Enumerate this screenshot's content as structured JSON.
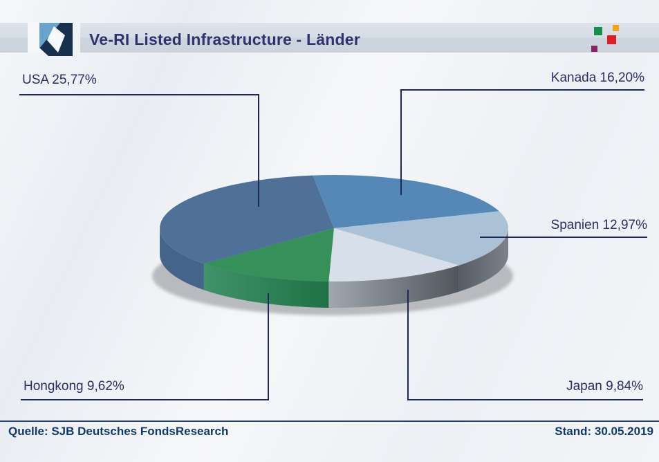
{
  "header": {
    "title": "Ve-RI Listed Infrastructure - Länder",
    "logo": "sjb-logo",
    "squares": [
      {
        "name": "green-square",
        "color": "#168f4c"
      },
      {
        "name": "orange-square",
        "color": "#f2a50c"
      },
      {
        "name": "red-square",
        "color": "#df1f26"
      },
      {
        "name": "purple-square",
        "color": "#8c2066"
      }
    ]
  },
  "chart_data": {
    "type": "pie",
    "style": "3d-pie",
    "title": "Ve-RI Listed Infrastructure - Länder",
    "unit": "%",
    "legend_position": "callout-labels",
    "start_angle_deg": 97,
    "direction": "clockwise",
    "categories": [
      "Kanada",
      "Spanien",
      "Japan",
      "Hongkong",
      "USA"
    ],
    "values": [
      16.2,
      12.97,
      9.84,
      9.62,
      25.77
    ],
    "slices": [
      {
        "name": "Kanada",
        "value": 16.2,
        "display": "Kanada 16,20%",
        "color": "#5588b6",
        "side": "#3f6a94"
      },
      {
        "name": "Spanien",
        "value": 12.97,
        "display": "Spanien 12,97%",
        "color": "#abc1d6",
        "side_gradient": [
          "#565c63",
          "#7b828a"
        ]
      },
      {
        "name": "Japan",
        "value": 9.84,
        "display": "Japan 9,84%",
        "color": "#d7e0ea",
        "side_gradient": [
          "#a0a7af",
          "#50565c"
        ]
      },
      {
        "name": "Hongkong",
        "value": 9.62,
        "display": "Hongkong 9,62%",
        "color": "#35905a",
        "side_gradient": [
          "#40926a",
          "#1f7245"
        ]
      },
      {
        "name": "USA",
        "value": 25.77,
        "display": "USA 25,77%",
        "color": "#4f7097",
        "side": "#44648a"
      }
    ],
    "shadow_color": "#b9babd",
    "callout_line_color": "#1e2756"
  },
  "footer": {
    "source": "Quelle: SJB Deutsches FondsResearch",
    "date": "Stand: 30.05.2019"
  }
}
